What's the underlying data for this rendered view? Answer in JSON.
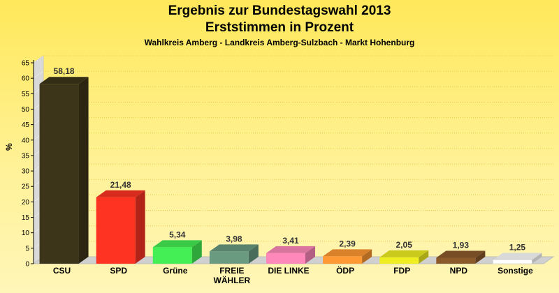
{
  "header": {
    "title_line1": "Ergebnis zur Bundestagswahl 2013",
    "title_line2": "Erststimmen in Prozent",
    "subtitle": "Wahlkreis Amberg - Landkreis Amberg-Sulzbach - Markt Hohenburg"
  },
  "chart_data": {
    "type": "bar",
    "title": "Ergebnis zur Bundestagswahl 2013 Erststimmen in Prozent",
    "subtitle": "Wahlkreis Amberg - Landkreis Amberg-Sulzbach - Markt Hohenburg",
    "ylabel": "%",
    "xlabel": "",
    "ylim": [
      0,
      65
    ],
    "yticks": [
      0,
      5,
      10,
      15,
      20,
      25,
      30,
      35,
      40,
      45,
      50,
      55,
      60,
      65
    ],
    "grid": true,
    "categories": [
      "CSU",
      "SPD",
      "Grüne",
      "FREIE WÄHLER",
      "DIE LINKE",
      "ÖDP",
      "FDP",
      "NPD",
      "Sonstige"
    ],
    "category_lines": [
      [
        "CSU"
      ],
      [
        "SPD"
      ],
      [
        "Grüne"
      ],
      [
        "FREIE",
        "WÄHLER"
      ],
      [
        "DIE LINKE"
      ],
      [
        "ÖDP"
      ],
      [
        "FDP"
      ],
      [
        "NPD"
      ],
      [
        "Sonstige"
      ]
    ],
    "values": [
      58.18,
      21.48,
      5.34,
      3.98,
      3.41,
      2.39,
      2.05,
      1.93,
      1.25
    ],
    "value_labels": [
      "58,18",
      "21,48",
      "5,34",
      "3,98",
      "3,41",
      "2,39",
      "2,05",
      "1,93",
      "1,25"
    ],
    "colors": [
      "#3d3519",
      "#ff3322",
      "#44ee55",
      "#6a9a80",
      "#ff88bb",
      "#ff9933",
      "#eeee22",
      "#8b5a2b",
      "#ffffff"
    ]
  }
}
